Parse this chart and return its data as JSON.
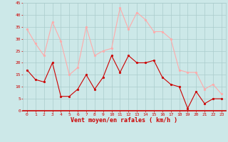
{
  "x": [
    0,
    1,
    2,
    3,
    4,
    5,
    6,
    7,
    8,
    9,
    10,
    11,
    12,
    13,
    14,
    15,
    16,
    17,
    18,
    19,
    20,
    21,
    22,
    23
  ],
  "wind_mean": [
    17,
    13,
    12,
    20,
    6,
    6,
    9,
    15,
    9,
    14,
    23,
    16,
    23,
    20,
    20,
    21,
    14,
    11,
    10,
    1,
    8,
    3,
    5,
    5
  ],
  "wind_gust": [
    34,
    28,
    23,
    37,
    29,
    15,
    18,
    35,
    23,
    25,
    26,
    43,
    34,
    41,
    38,
    33,
    33,
    30,
    17,
    16,
    16,
    9,
    11,
    7
  ],
  "bg_color": "#cce8e8",
  "grid_color": "#aacccc",
  "mean_color": "#cc0000",
  "gust_color": "#ffaaaa",
  "xlabel": "Vent moyen/en rafales ( km/h )",
  "xlabel_color": "#cc0000",
  "tick_color": "#cc0000",
  "spine_bottom_color": "#cc0000",
  "ylim": [
    0,
    45
  ],
  "yticks": [
    0,
    5,
    10,
    15,
    20,
    25,
    30,
    35,
    40,
    45
  ],
  "xticks": [
    0,
    1,
    2,
    3,
    4,
    5,
    6,
    7,
    8,
    9,
    10,
    11,
    12,
    13,
    14,
    15,
    16,
    17,
    18,
    19,
    20,
    21,
    22,
    23
  ],
  "tick_fontsize": 4.5,
  "xlabel_fontsize": 6.0
}
